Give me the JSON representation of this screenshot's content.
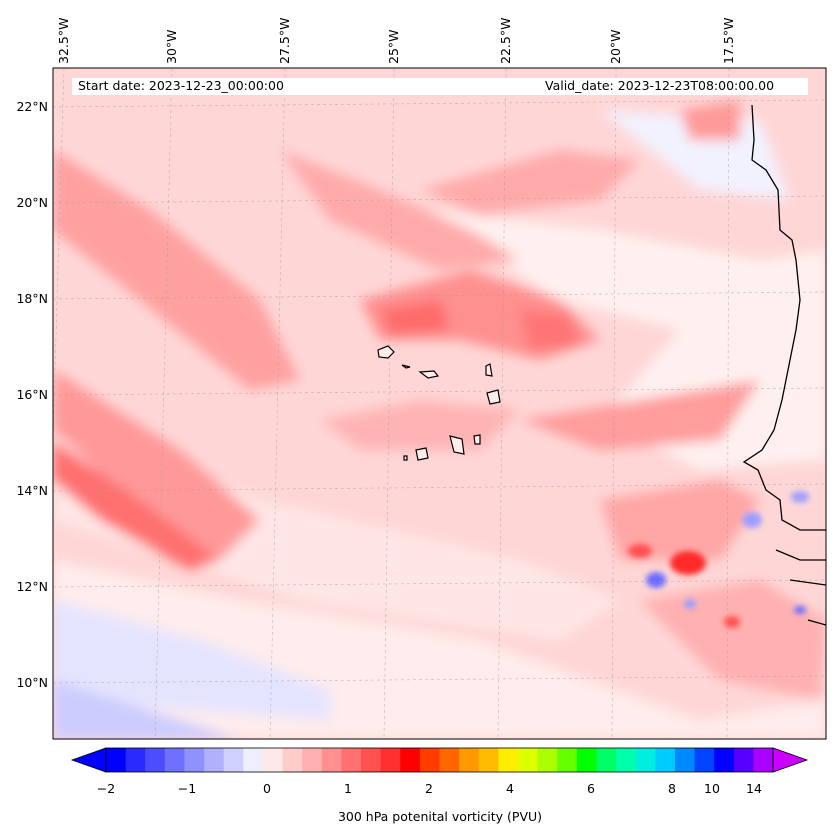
{
  "header": {
    "start_date": "Start date: 2023-12-23_00:00:00",
    "valid_date": "Valid_date: 2023-12-23T08:00:00.00"
  },
  "axes": {
    "longitude_labels": [
      "32.5°W",
      "30°W",
      "27.5°W",
      "25°W",
      "22.5°W",
      "20°W",
      "17.5°W"
    ],
    "latitude_labels": [
      "22°N",
      "20°N",
      "18°N",
      "16°N",
      "14°N",
      "12°N",
      "10°N"
    ]
  },
  "colorbar": {
    "label": "300 hPa potenital vorticity (PVU)",
    "tick_labels": [
      "−2",
      "−1",
      "0",
      "1",
      "2",
      "4",
      "6",
      "8",
      "10",
      "14"
    ],
    "colors": [
      "#0000ff",
      "#2a2aff",
      "#4d4dff",
      "#7070ff",
      "#9090ff",
      "#b0b0ff",
      "#d0d0ff",
      "#eeeeff",
      "#ffe8e8",
      "#ffcccc",
      "#ffb0b0",
      "#ff9090",
      "#ff7070",
      "#ff5050",
      "#ff3030",
      "#ff0000",
      "#ff3c00",
      "#ff6600",
      "#ff9900",
      "#ffbb00",
      "#ffee00",
      "#ddff00",
      "#aaff00",
      "#66ff00",
      "#00ff00",
      "#00ff66",
      "#00ffaa",
      "#00eedd",
      "#00ccff",
      "#0088ff",
      "#0044ff",
      "#0000ff",
      "#5500ff",
      "#aa00ff"
    ],
    "extend_low_color": "#0000ff",
    "extend_high_color": "#cc00ff"
  }
}
